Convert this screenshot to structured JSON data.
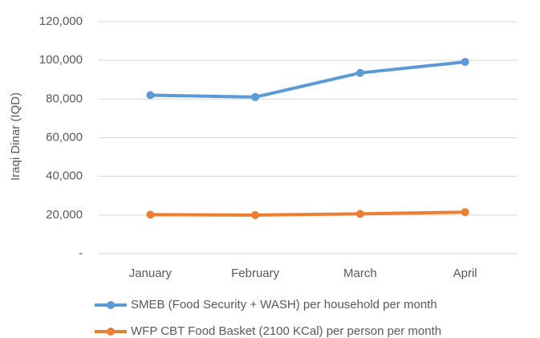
{
  "chart_data": {
    "type": "line",
    "y_axis_label": "Iraqi Dinar (IQD)",
    "categories": [
      "January",
      "February",
      "March",
      "April"
    ],
    "series": [
      {
        "name": "SMEB (Food Security + WASH) per household per month",
        "color": "#5b9bd5",
        "values": [
          82000,
          81000,
          93500,
          99200
        ]
      },
      {
        "name": "WFP CBT Food Basket (2100 KCal) per person per month",
        "color": "#ed7d31",
        "values": [
          20200,
          20000,
          20600,
          21500
        ]
      }
    ],
    "ylim": [
      0,
      120000
    ],
    "yticks": [
      {
        "value": 0,
        "label": "-"
      },
      {
        "value": 20000,
        "label": "20,000"
      },
      {
        "value": 40000,
        "label": "40,000"
      },
      {
        "value": 60000,
        "label": "60,000"
      },
      {
        "value": 80000,
        "label": "80,000"
      },
      {
        "value": 100000,
        "label": "100,000"
      },
      {
        "value": 120000,
        "label": "120,000"
      }
    ],
    "grid": true
  }
}
